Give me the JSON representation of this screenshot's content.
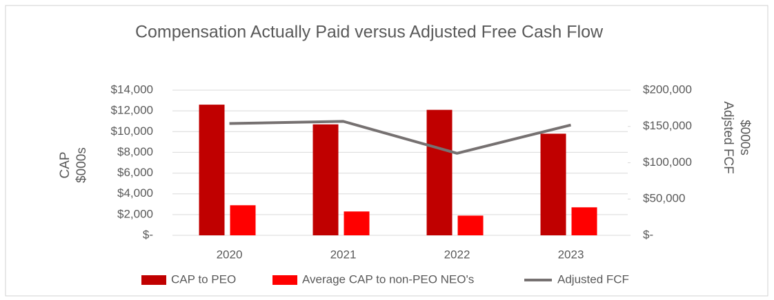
{
  "chart_data": {
    "type": "bar_line",
    "title": "Compensation Actually Paid versus Adjusted Free Cash Flow",
    "y_label": [
      "CAP",
      "$000s"
    ],
    "y2_label": [
      "Adjsted FCF",
      "$000s"
    ],
    "categories": [
      "2020",
      "2021",
      "2022",
      "2023"
    ],
    "series": [
      {
        "name": "CAP to PEO",
        "color": "#c00000",
        "type": "bar",
        "values": [
          12600,
          10700,
          12100,
          9800
        ]
      },
      {
        "name": "Average CAP to  non-PEO NEO's",
        "color": "#ff0000",
        "type": "bar",
        "values": [
          2900,
          2300,
          1900,
          2700
        ]
      },
      {
        "name": "Adjusted FCF",
        "color": "#767171",
        "type": "line",
        "axis": "y2",
        "values": [
          154000,
          157000,
          113000,
          152000
        ]
      }
    ],
    "ylim": [
      0,
      14000
    ],
    "yticks": [
      {
        "value": 0,
        "label": "$-"
      },
      {
        "value": 2000,
        "label": "$2,000"
      },
      {
        "value": 4000,
        "label": "$4,000"
      },
      {
        "value": 6000,
        "label": "$6,000"
      },
      {
        "value": 8000,
        "label": "$8,000"
      },
      {
        "value": 10000,
        "label": "$10,000"
      },
      {
        "value": 12000,
        "label": "$12,000"
      },
      {
        "value": 14000,
        "label": "$14,000"
      }
    ],
    "y2lim": [
      0,
      200000
    ],
    "y2ticks": [
      {
        "value": 0,
        "label": "$-"
      },
      {
        "value": 50000,
        "label": "$50,000"
      },
      {
        "value": 100000,
        "label": "$100,000"
      },
      {
        "value": 150000,
        "label": "$150,000"
      },
      {
        "value": 200000,
        "label": "$200,000"
      }
    ],
    "grid": true,
    "legend": "bottom"
  }
}
